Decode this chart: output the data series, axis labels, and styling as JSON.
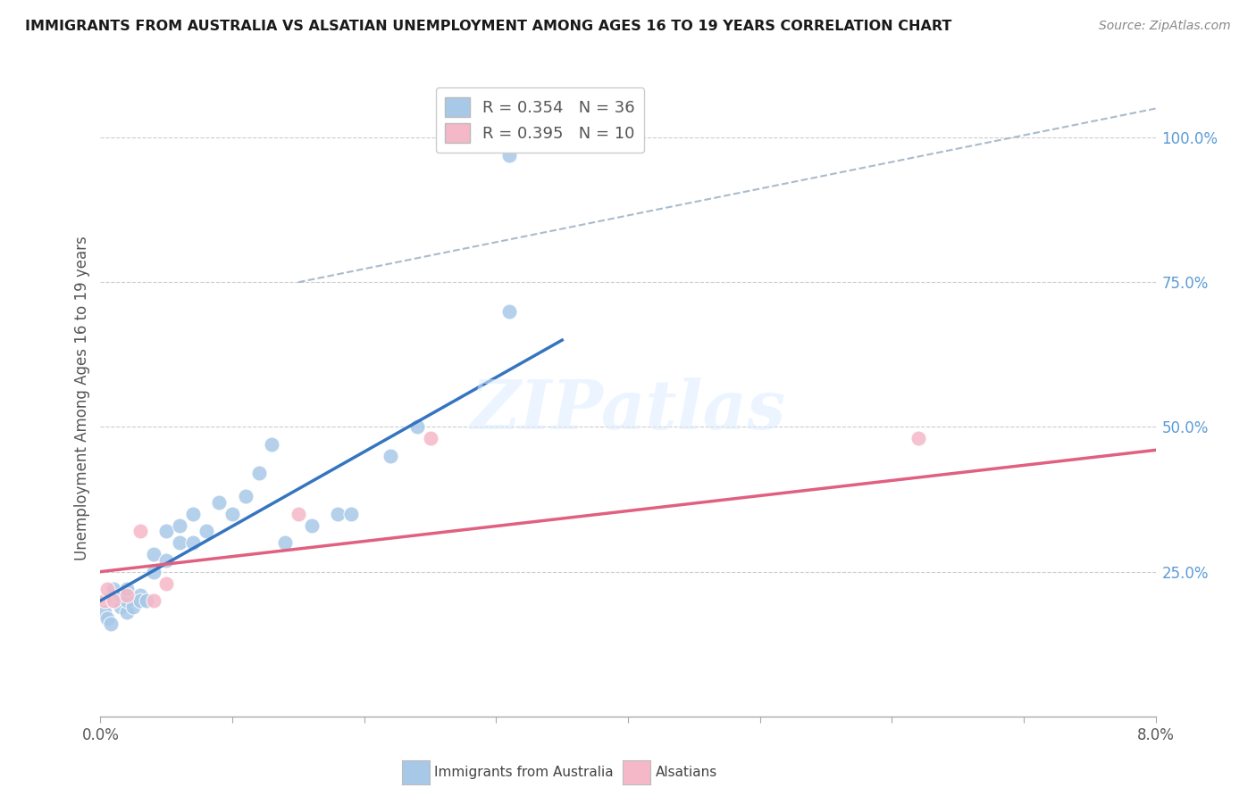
{
  "title": "IMMIGRANTS FROM AUSTRALIA VS ALSATIAN UNEMPLOYMENT AMONG AGES 16 TO 19 YEARS CORRELATION CHART",
  "source": "Source: ZipAtlas.com",
  "ylabel": "Unemployment Among Ages 16 to 19 years",
  "ylabel_right_ticks": [
    "100.0%",
    "75.0%",
    "50.0%",
    "25.0%"
  ],
  "ylabel_right_vals": [
    100,
    75,
    50,
    25
  ],
  "watermark": "ZIPatlas",
  "legend_R1": "R = 0.354",
  "legend_N1": "N = 36",
  "legend_R2": "R = 0.395",
  "legend_N2": "N = 10",
  "blue_color": "#A8C8E8",
  "pink_color": "#F5B8C8",
  "blue_line_color": "#3575C0",
  "pink_line_color": "#E06080",
  "dashed_line_color": "#AABBCC",
  "blue_scatter_x": [
    0.0003,
    0.0005,
    0.0008,
    0.001,
    0.001,
    0.0015,
    0.0015,
    0.002,
    0.002,
    0.002,
    0.0025,
    0.003,
    0.003,
    0.0035,
    0.004,
    0.004,
    0.005,
    0.005,
    0.006,
    0.006,
    0.007,
    0.007,
    0.008,
    0.009,
    0.01,
    0.011,
    0.012,
    0.013,
    0.014,
    0.016,
    0.018,
    0.019,
    0.022,
    0.024,
    0.031,
    0.031
  ],
  "blue_scatter_y": [
    18,
    17,
    16,
    20,
    22,
    19,
    21,
    18,
    20,
    22,
    19,
    21,
    20,
    20,
    25,
    28,
    27,
    32,
    30,
    33,
    35,
    30,
    32,
    37,
    35,
    38,
    42,
    47,
    30,
    33,
    35,
    35,
    45,
    50,
    70,
    97
  ],
  "pink_scatter_x": [
    0.0003,
    0.0005,
    0.001,
    0.002,
    0.003,
    0.004,
    0.005,
    0.015,
    0.025,
    0.062
  ],
  "pink_scatter_y": [
    20,
    22,
    20,
    21,
    32,
    20,
    23,
    35,
    48,
    48
  ],
  "xmin": 0.0,
  "xmax": 0.08,
  "ymin": 0,
  "ymax": 110,
  "blue_trend_x": [
    0.0,
    0.035
  ],
  "blue_trend_y": [
    20,
    65
  ],
  "pink_trend_x": [
    0.0,
    0.08
  ],
  "pink_trend_y": [
    25,
    46
  ],
  "dash_trend_x": [
    0.015,
    0.08
  ],
  "dash_trend_y": [
    75,
    105
  ]
}
